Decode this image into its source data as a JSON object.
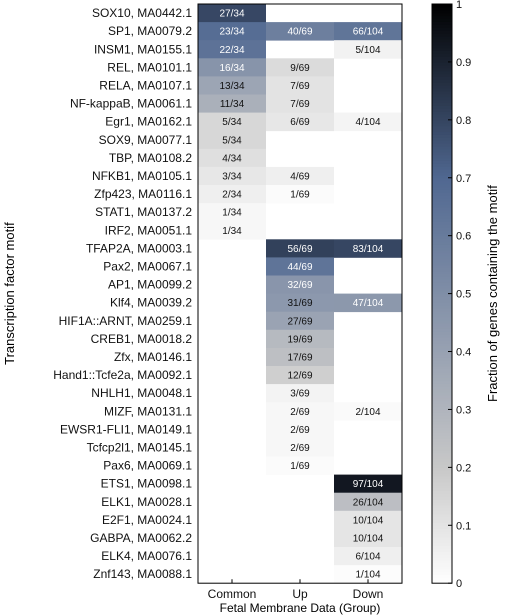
{
  "chart_data": {
    "type": "heatmap",
    "xlabel": "Fetal Membrane Data (Group)",
    "ylabel": "Transcription factor motif",
    "colorbar_label": "Fraction of genes containing the motif",
    "colorbar_ticks": [
      "0",
      "0.1",
      "0.2",
      "0.3",
      "0.4",
      "0.5",
      "0.6",
      "0.7",
      "0.8",
      "0.9",
      "1"
    ],
    "columns": [
      "Common",
      "Up",
      "Down"
    ],
    "colorscale": {
      "low": "#ffffff",
      "mid": "#c8c8c8",
      "high": "#506891",
      "max": "#000000"
    },
    "rows": [
      {
        "label": "SOX10, MA0442.1",
        "cells": [
          "27/34",
          "",
          ""
        ]
      },
      {
        "label": "SP1, MA0079.2",
        "cells": [
          "23/34",
          "40/69",
          "66/104"
        ]
      },
      {
        "label": "INSM1, MA0155.1",
        "cells": [
          "22/34",
          "",
          "5/104"
        ]
      },
      {
        "label": "REL, MA0101.1",
        "cells": [
          "16/34",
          "9/69",
          ""
        ]
      },
      {
        "label": "RELA, MA0107.1",
        "cells": [
          "13/34",
          "7/69",
          ""
        ]
      },
      {
        "label": "NF-kappaB, MA0061.1",
        "cells": [
          "11/34",
          "7/69",
          ""
        ]
      },
      {
        "label": "Egr1, MA0162.1",
        "cells": [
          "5/34",
          "6/69",
          "4/104"
        ]
      },
      {
        "label": "SOX9, MA0077.1",
        "cells": [
          "5/34",
          "",
          ""
        ]
      },
      {
        "label": "TBP, MA0108.2",
        "cells": [
          "4/34",
          "",
          ""
        ]
      },
      {
        "label": "NFKB1, MA0105.1",
        "cells": [
          "3/34",
          "4/69",
          ""
        ]
      },
      {
        "label": "Zfp423, MA0116.1",
        "cells": [
          "2/34",
          "1/69",
          ""
        ]
      },
      {
        "label": "STAT1, MA0137.2",
        "cells": [
          "1/34",
          "",
          ""
        ]
      },
      {
        "label": "IRF2, MA0051.1",
        "cells": [
          "1/34",
          "",
          ""
        ]
      },
      {
        "label": "TFAP2A, MA0003.1",
        "cells": [
          "",
          "56/69",
          "83/104"
        ]
      },
      {
        "label": "Pax2, MA0067.1",
        "cells": [
          "",
          "44/69",
          ""
        ]
      },
      {
        "label": "AP1, MA0099.2",
        "cells": [
          "",
          "32/69",
          ""
        ]
      },
      {
        "label": "Klf4, MA0039.2",
        "cells": [
          "",
          "31/69",
          "47/104"
        ]
      },
      {
        "label": "HIF1A::ARNT, MA0259.1",
        "cells": [
          "",
          "27/69",
          ""
        ]
      },
      {
        "label": "CREB1, MA0018.2",
        "cells": [
          "",
          "19/69",
          ""
        ]
      },
      {
        "label": "Zfx, MA0146.1",
        "cells": [
          "",
          "17/69",
          ""
        ]
      },
      {
        "label": "Hand1::Tcfe2a, MA0092.1",
        "cells": [
          "",
          "12/69",
          ""
        ]
      },
      {
        "label": "NHLH1, MA0048.1",
        "cells": [
          "",
          "3/69",
          ""
        ]
      },
      {
        "label": "MIZF, MA0131.1",
        "cells": [
          "",
          "2/69",
          "2/104"
        ]
      },
      {
        "label": "EWSR1-FLI1, MA0149.1",
        "cells": [
          "",
          "2/69",
          ""
        ]
      },
      {
        "label": "Tcfcp2l1, MA0145.1",
        "cells": [
          "",
          "2/69",
          ""
        ]
      },
      {
        "label": "Pax6, MA0069.1",
        "cells": [
          "",
          "1/69",
          ""
        ]
      },
      {
        "label": "ETS1, MA0098.1",
        "cells": [
          "",
          "",
          "97/104"
        ]
      },
      {
        "label": "ELK1, MA0028.1",
        "cells": [
          "",
          "",
          "26/104"
        ]
      },
      {
        "label": "E2F1, MA0024.1",
        "cells": [
          "",
          "",
          "10/104"
        ]
      },
      {
        "label": "GABPA, MA0062.2",
        "cells": [
          "",
          "",
          "10/104"
        ]
      },
      {
        "label": "ELK4, MA0076.1",
        "cells": [
          "",
          "",
          "6/104"
        ]
      },
      {
        "label": "Znf143, MA0088.1",
        "cells": [
          "",
          "",
          "1/104"
        ]
      }
    ]
  }
}
